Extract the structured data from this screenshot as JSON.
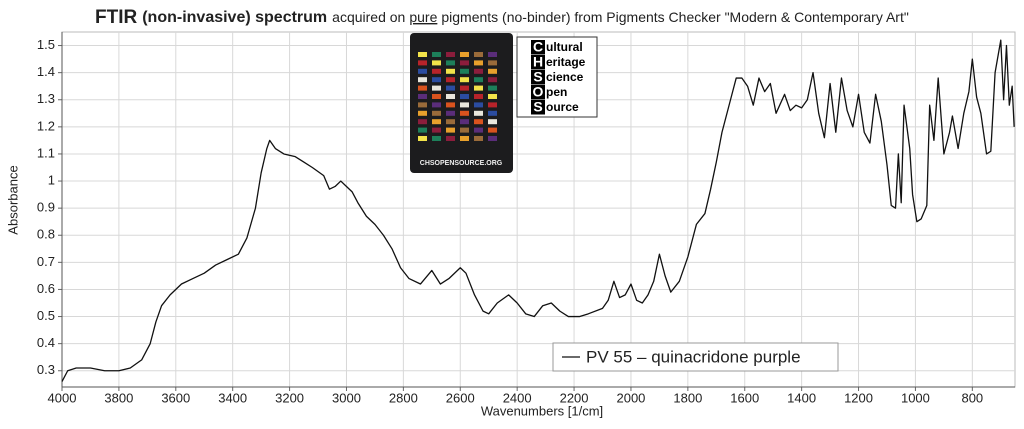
{
  "chart_data": {
    "type": "line",
    "title": {
      "part1": "FTIR",
      "part2": "(non-invasive) spectrum",
      "part3": "acquired on",
      "part4": "pure",
      "part5": "pigments (no-binder) from Pigments Checker \"Modern & Contemporary Art\""
    },
    "x_label": "Wavenumbers [1/cm]",
    "y_label": "Absorbance",
    "xlim": [
      4000,
      650
    ],
    "ylim": [
      0.24,
      1.55
    ],
    "xticks": [
      4000,
      3800,
      3600,
      3400,
      3200,
      3000,
      2800,
      2600,
      2400,
      2200,
      2000,
      1800,
      1600,
      1400,
      1200,
      1000,
      800
    ],
    "yticks": [
      0.3,
      0.4,
      0.5,
      0.6,
      0.7,
      0.8,
      0.9,
      1,
      1.1,
      1.2,
      1.3,
      1.4,
      1.5
    ],
    "grid": true,
    "legend": "lower right",
    "x": [
      4000,
      3980,
      3950,
      3900,
      3850,
      3800,
      3760,
      3720,
      3690,
      3670,
      3650,
      3620,
      3580,
      3540,
      3500,
      3460,
      3420,
      3380,
      3350,
      3320,
      3300,
      3280,
      3270,
      3250,
      3220,
      3180,
      3150,
      3120,
      3080,
      3060,
      3040,
      3020,
      3000,
      2980,
      2960,
      2930,
      2900,
      2870,
      2840,
      2810,
      2780,
      2740,
      2700,
      2670,
      2640,
      2600,
      2580,
      2550,
      2520,
      2500,
      2470,
      2430,
      2400,
      2370,
      2340,
      2310,
      2280,
      2250,
      2220,
      2180,
      2150,
      2100,
      2080,
      2060,
      2040,
      2020,
      2000,
      1980,
      1960,
      1940,
      1920,
      1900,
      1880,
      1860,
      1830,
      1800,
      1770,
      1740,
      1720,
      1700,
      1680,
      1650,
      1630,
      1610,
      1590,
      1570,
      1550,
      1530,
      1510,
      1490,
      1460,
      1440,
      1420,
      1400,
      1380,
      1360,
      1340,
      1320,
      1300,
      1280,
      1260,
      1240,
      1220,
      1200,
      1180,
      1160,
      1140,
      1120,
      1100,
      1085,
      1070,
      1060,
      1050,
      1040,
      1020,
      1010,
      995,
      980,
      960,
      950,
      935,
      920,
      900,
      880,
      870,
      850,
      830,
      812,
      800,
      785,
      770,
      750,
      735,
      720,
      700,
      690,
      680,
      670,
      660,
      653
    ],
    "series": [
      {
        "name": "PV 55 – quinacridone purple",
        "color": "#111111",
        "values": [
          0.26,
          0.3,
          0.31,
          0.31,
          0.3,
          0.3,
          0.31,
          0.34,
          0.4,
          0.48,
          0.54,
          0.58,
          0.62,
          0.64,
          0.66,
          0.69,
          0.71,
          0.73,
          0.79,
          0.9,
          1.03,
          1.12,
          1.15,
          1.12,
          1.1,
          1.09,
          1.07,
          1.05,
          1.02,
          0.97,
          0.98,
          1.0,
          0.98,
          0.96,
          0.92,
          0.87,
          0.84,
          0.8,
          0.75,
          0.68,
          0.64,
          0.62,
          0.67,
          0.62,
          0.64,
          0.68,
          0.66,
          0.58,
          0.52,
          0.51,
          0.55,
          0.58,
          0.55,
          0.51,
          0.5,
          0.54,
          0.55,
          0.52,
          0.5,
          0.5,
          0.51,
          0.53,
          0.56,
          0.63,
          0.57,
          0.58,
          0.62,
          0.56,
          0.55,
          0.58,
          0.63,
          0.73,
          0.65,
          0.59,
          0.63,
          0.72,
          0.84,
          0.88,
          0.97,
          1.07,
          1.18,
          1.3,
          1.38,
          1.38,
          1.35,
          1.28,
          1.38,
          1.33,
          1.36,
          1.25,
          1.32,
          1.26,
          1.28,
          1.27,
          1.3,
          1.4,
          1.25,
          1.16,
          1.36,
          1.18,
          1.38,
          1.26,
          1.2,
          1.32,
          1.18,
          1.14,
          1.32,
          1.22,
          1.06,
          0.91,
          0.9,
          1.1,
          0.92,
          1.28,
          1.12,
          0.95,
          0.85,
          0.86,
          0.91,
          1.28,
          1.15,
          1.38,
          1.1,
          1.18,
          1.24,
          1.12,
          1.25,
          1.33,
          1.45,
          1.31,
          1.25,
          1.1,
          1.11,
          1.4,
          1.52,
          1.3,
          1.5,
          1.28,
          1.35,
          1.2
        ]
      }
    ]
  },
  "logo": {
    "card_text": "CHSOPENSOURCE.ORG",
    "lines": [
      {
        "initial": "C",
        "rest": "ultural"
      },
      {
        "initial": "H",
        "rest": "eritage"
      },
      {
        "initial": "S",
        "rest": "cience"
      },
      {
        "initial": "O",
        "rest": "pen"
      },
      {
        "initial": "S",
        "rest": "ource"
      }
    ]
  }
}
